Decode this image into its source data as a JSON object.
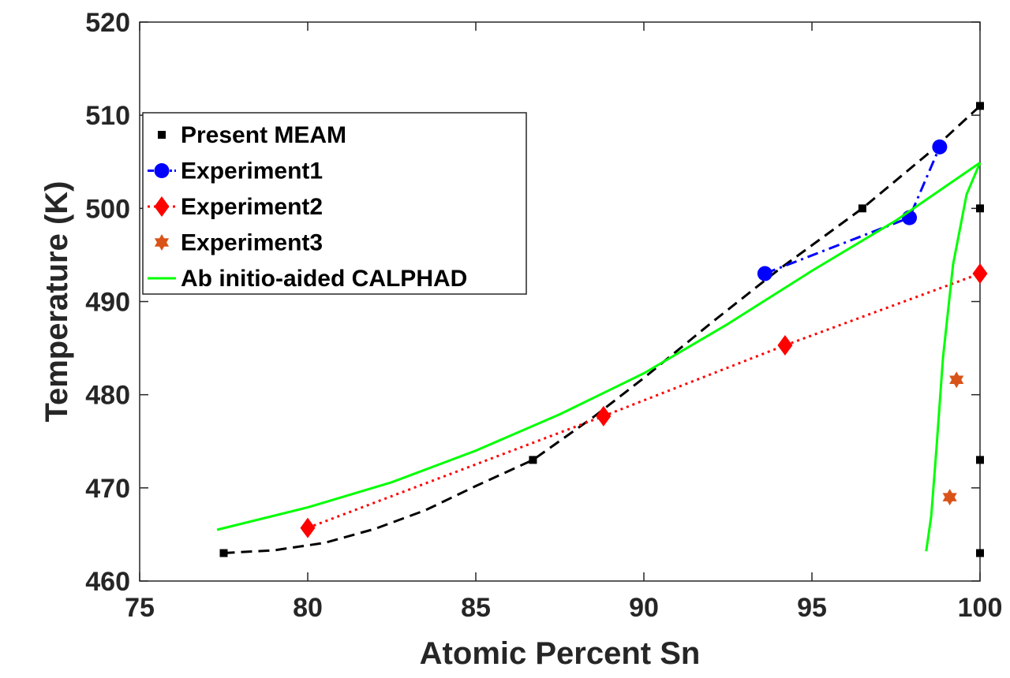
{
  "chart_data": {
    "type": "line",
    "title": "",
    "xlabel": "Atomic Percent Sn",
    "ylabel": "Temperature (K)",
    "xlim": [
      75,
      100
    ],
    "ylim": [
      460,
      520
    ],
    "xticks": [
      75,
      80,
      85,
      90,
      95,
      100
    ],
    "yticks": [
      460,
      470,
      480,
      490,
      500,
      510,
      520
    ],
    "grid": false,
    "legend_position": "upper-left",
    "series": [
      {
        "name": "Present MEAM",
        "style": "dashed",
        "color": "#000000",
        "marker": "square",
        "points": [
          [
            77.5,
            463
          ],
          [
            86.7,
            473
          ],
          [
            96.5,
            500
          ],
          [
            100,
            511
          ]
        ],
        "line_segments": [
          [
            [
              77.5,
              463
            ],
            [
              79,
              463.3
            ],
            [
              80.5,
              464.1
            ],
            [
              82,
              465.6
            ],
            [
              83.5,
              467.6
            ],
            [
              85,
              470.2
            ],
            [
              86.7,
              473
            ],
            [
              88.5,
              477.6
            ],
            [
              90,
              481.8
            ],
            [
              92,
              487.7
            ],
            [
              94,
              493.4
            ],
            [
              96.5,
              500
            ],
            [
              98.5,
              506
            ],
            [
              100,
              511
            ]
          ]
        ],
        "extra_markers": [
          [
            100,
            500
          ],
          [
            100,
            473
          ],
          [
            100,
            463
          ]
        ]
      },
      {
        "name": "Experiment1",
        "style": "dashdot",
        "color": "#0000ff",
        "marker": "circle",
        "points": [
          [
            93.6,
            493
          ],
          [
            97.9,
            499
          ],
          [
            98.8,
            506.6
          ]
        ]
      },
      {
        "name": "Experiment2",
        "style": "dotted",
        "color": "#ff0000",
        "marker": "diamond",
        "points": [
          [
            80,
            465.7
          ],
          [
            88.8,
            477.7
          ],
          [
            94.2,
            485.3
          ],
          [
            100,
            493
          ]
        ]
      },
      {
        "name": "Experiment3",
        "style": "none",
        "color": "#d95319",
        "marker": "hexagram",
        "points": [
          [
            99.3,
            481.6
          ],
          [
            99.1,
            469
          ]
        ]
      },
      {
        "name": "Ab initio-aided CALPHAD",
        "style": "solid",
        "color": "#00ff00",
        "marker": "none",
        "line_segments": [
          [
            [
              77.3,
              465.5
            ],
            [
              80,
              467.9
            ],
            [
              82.5,
              470.6
            ],
            [
              85,
              474
            ],
            [
              87.5,
              477.9
            ],
            [
              90,
              482.3
            ],
            [
              92.5,
              487.6
            ],
            [
              95,
              493.3
            ],
            [
              97.5,
              498.7
            ],
            [
              100,
              504.9
            ]
          ],
          [
            [
              100,
              504.9
            ],
            [
              99.6,
              501.5
            ],
            [
              99.2,
              494
            ],
            [
              98.9,
              484
            ],
            [
              98.7,
              474
            ],
            [
              98.55,
              467
            ],
            [
              98.4,
              463.2
            ]
          ]
        ]
      }
    ]
  }
}
